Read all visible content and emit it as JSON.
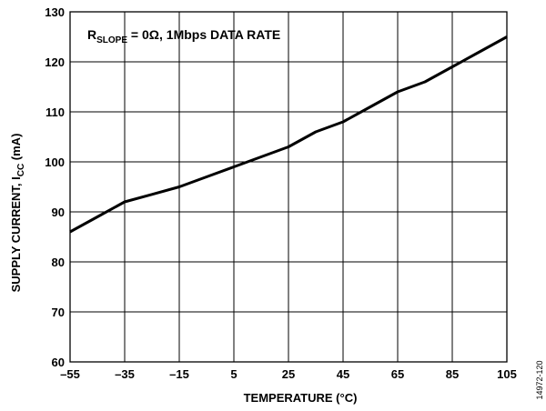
{
  "chart_data": {
    "type": "line",
    "title": "",
    "xlabel": "TEMPERATURE (°C)",
    "ylabel": {
      "main": "SUPPLY CURRENT, I",
      "sub": "CC",
      "suffix": " (mA)"
    },
    "annotation": {
      "main": "R",
      "sub": "SLOPE",
      "suffix": " = 0Ω, 1Mbps DATA RATE"
    },
    "figure_id": "14972-120",
    "xlim": [
      -55,
      105
    ],
    "ylim": [
      60,
      130
    ],
    "x_ticks": [
      -55,
      -35,
      -15,
      5,
      25,
      45,
      65,
      85,
      105
    ],
    "x_tick_labels": [
      "–55",
      "–35",
      "–15",
      "5",
      "25",
      "45",
      "65",
      "85",
      "105"
    ],
    "y_ticks": [
      60,
      70,
      80,
      90,
      100,
      110,
      120,
      130
    ],
    "y_tick_labels": [
      "60",
      "70",
      "80",
      "90",
      "100",
      "110",
      "120",
      "130"
    ],
    "grid": true,
    "series": [
      {
        "x": [
          -55,
          -45,
          -35,
          -25,
          -15,
          -5,
          5,
          15,
          25,
          35,
          45,
          55,
          65,
          75,
          85,
          95,
          105
        ],
        "y": [
          86,
          89,
          92,
          93.5,
          95,
          97,
          99,
          101,
          103,
          106,
          108,
          111,
          114,
          116,
          119,
          122,
          125
        ]
      }
    ]
  }
}
